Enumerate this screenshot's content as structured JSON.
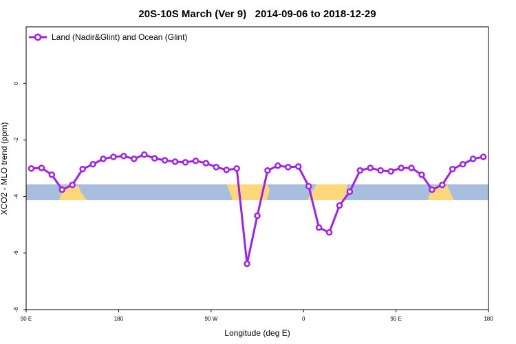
{
  "chart_data": {
    "type": "line",
    "title": "20S-10S March (Ver 9)   2014-09-06 to 2018-12-29",
    "x_label": "Longitude (deg E)",
    "y_label": "XCO2 - MLO trend (ppm)",
    "x": [
      95,
      105,
      115,
      125,
      135,
      145,
      155,
      165,
      175,
      185,
      195,
      205,
      215,
      225,
      235,
      245,
      255,
      265,
      275,
      285,
      295,
      305,
      315,
      325,
      335,
      345,
      355,
      365,
      375,
      385,
      395,
      405,
      415,
      425,
      435,
      445,
      455,
      465,
      475,
      485,
      495,
      505,
      515,
      525,
      535
    ],
    "series": [
      {
        "name": "Land (Nadir&Glint) and Ocean (Glint)",
        "color": "#a020f0",
        "values": [
          -3.01,
          -2.99,
          -3.23,
          -3.76,
          -3.59,
          -3.03,
          -2.86,
          -2.67,
          -2.6,
          -2.57,
          -2.67,
          -2.52,
          -2.65,
          -2.72,
          -2.77,
          -2.79,
          -2.74,
          -2.82,
          -2.96,
          -3.06,
          -3.01,
          -6.38,
          -4.68,
          -3.08,
          -2.91,
          -2.96,
          -2.94,
          -3.64,
          -5.1,
          -5.27,
          -4.32,
          -3.83,
          -3.08,
          -2.99,
          -3.08,
          -3.11,
          -2.99,
          -2.99,
          -3.23,
          -3.76,
          -3.59,
          -3.03,
          -2.86,
          -2.67,
          -2.6
        ]
      }
    ],
    "xlim": [
      90,
      540
    ],
    "xticks": [
      {
        "value": 90,
        "label": "90 E"
      },
      {
        "value": 180,
        "label": "180"
      },
      {
        "value": 270,
        "label": "90 W"
      },
      {
        "value": 360,
        "label": "0"
      },
      {
        "value": 450,
        "label": "90 E"
      },
      {
        "value": 540,
        "label": "180"
      }
    ],
    "ylim": [
      -8,
      2
    ],
    "yticks": [
      0,
      -2,
      -4,
      -6,
      -8
    ],
    "legend": "top-left"
  }
}
